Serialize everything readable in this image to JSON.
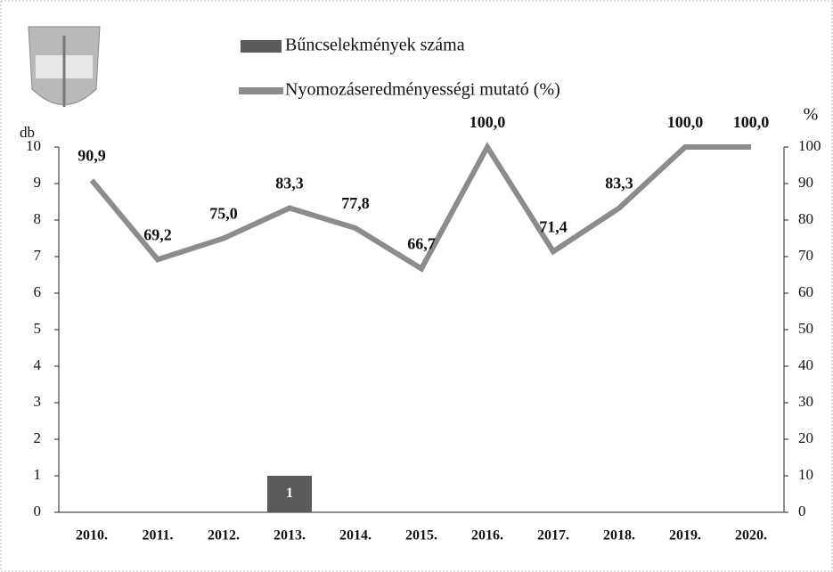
{
  "chart_data": {
    "type": "bar",
    "categories": [
      "2010.",
      "2011.",
      "2012.",
      "2013.",
      "2014.",
      "2015.",
      "2016.",
      "2017.",
      "2018.",
      "2019.",
      "2020."
    ],
    "series": [
      {
        "name": "Bűncselekmények száma",
        "type": "bar",
        "color": "#5a5a5a",
        "values": [
          null,
          null,
          null,
          1,
          null,
          null,
          null,
          null,
          null,
          null,
          null
        ]
      },
      {
        "name": "Nyomozáseredményességi mutató (%)",
        "type": "line",
        "axis": "y2",
        "color": "#8c8c8c",
        "values": [
          90.9,
          69.2,
          75.0,
          83.3,
          77.8,
          66.7,
          100.0,
          71.4,
          83.3,
          100.0,
          100.0
        ],
        "value_labels": [
          "90,9",
          "69,2",
          "75,0",
          "83,3",
          "77,8",
          "66,7",
          "100,0",
          "71,4",
          "83,3",
          "100,0",
          "100,0"
        ]
      }
    ],
    "y_label": "db",
    "y2_label": "%",
    "ylim": [
      0,
      10
    ],
    "yticks": [
      0,
      1,
      2,
      3,
      4,
      5,
      6,
      7,
      8,
      9,
      10
    ],
    "y2lim": [
      0,
      100
    ],
    "y2ticks": [
      0,
      10,
      20,
      30,
      40,
      50,
      60,
      70,
      80,
      90,
      100
    ]
  }
}
